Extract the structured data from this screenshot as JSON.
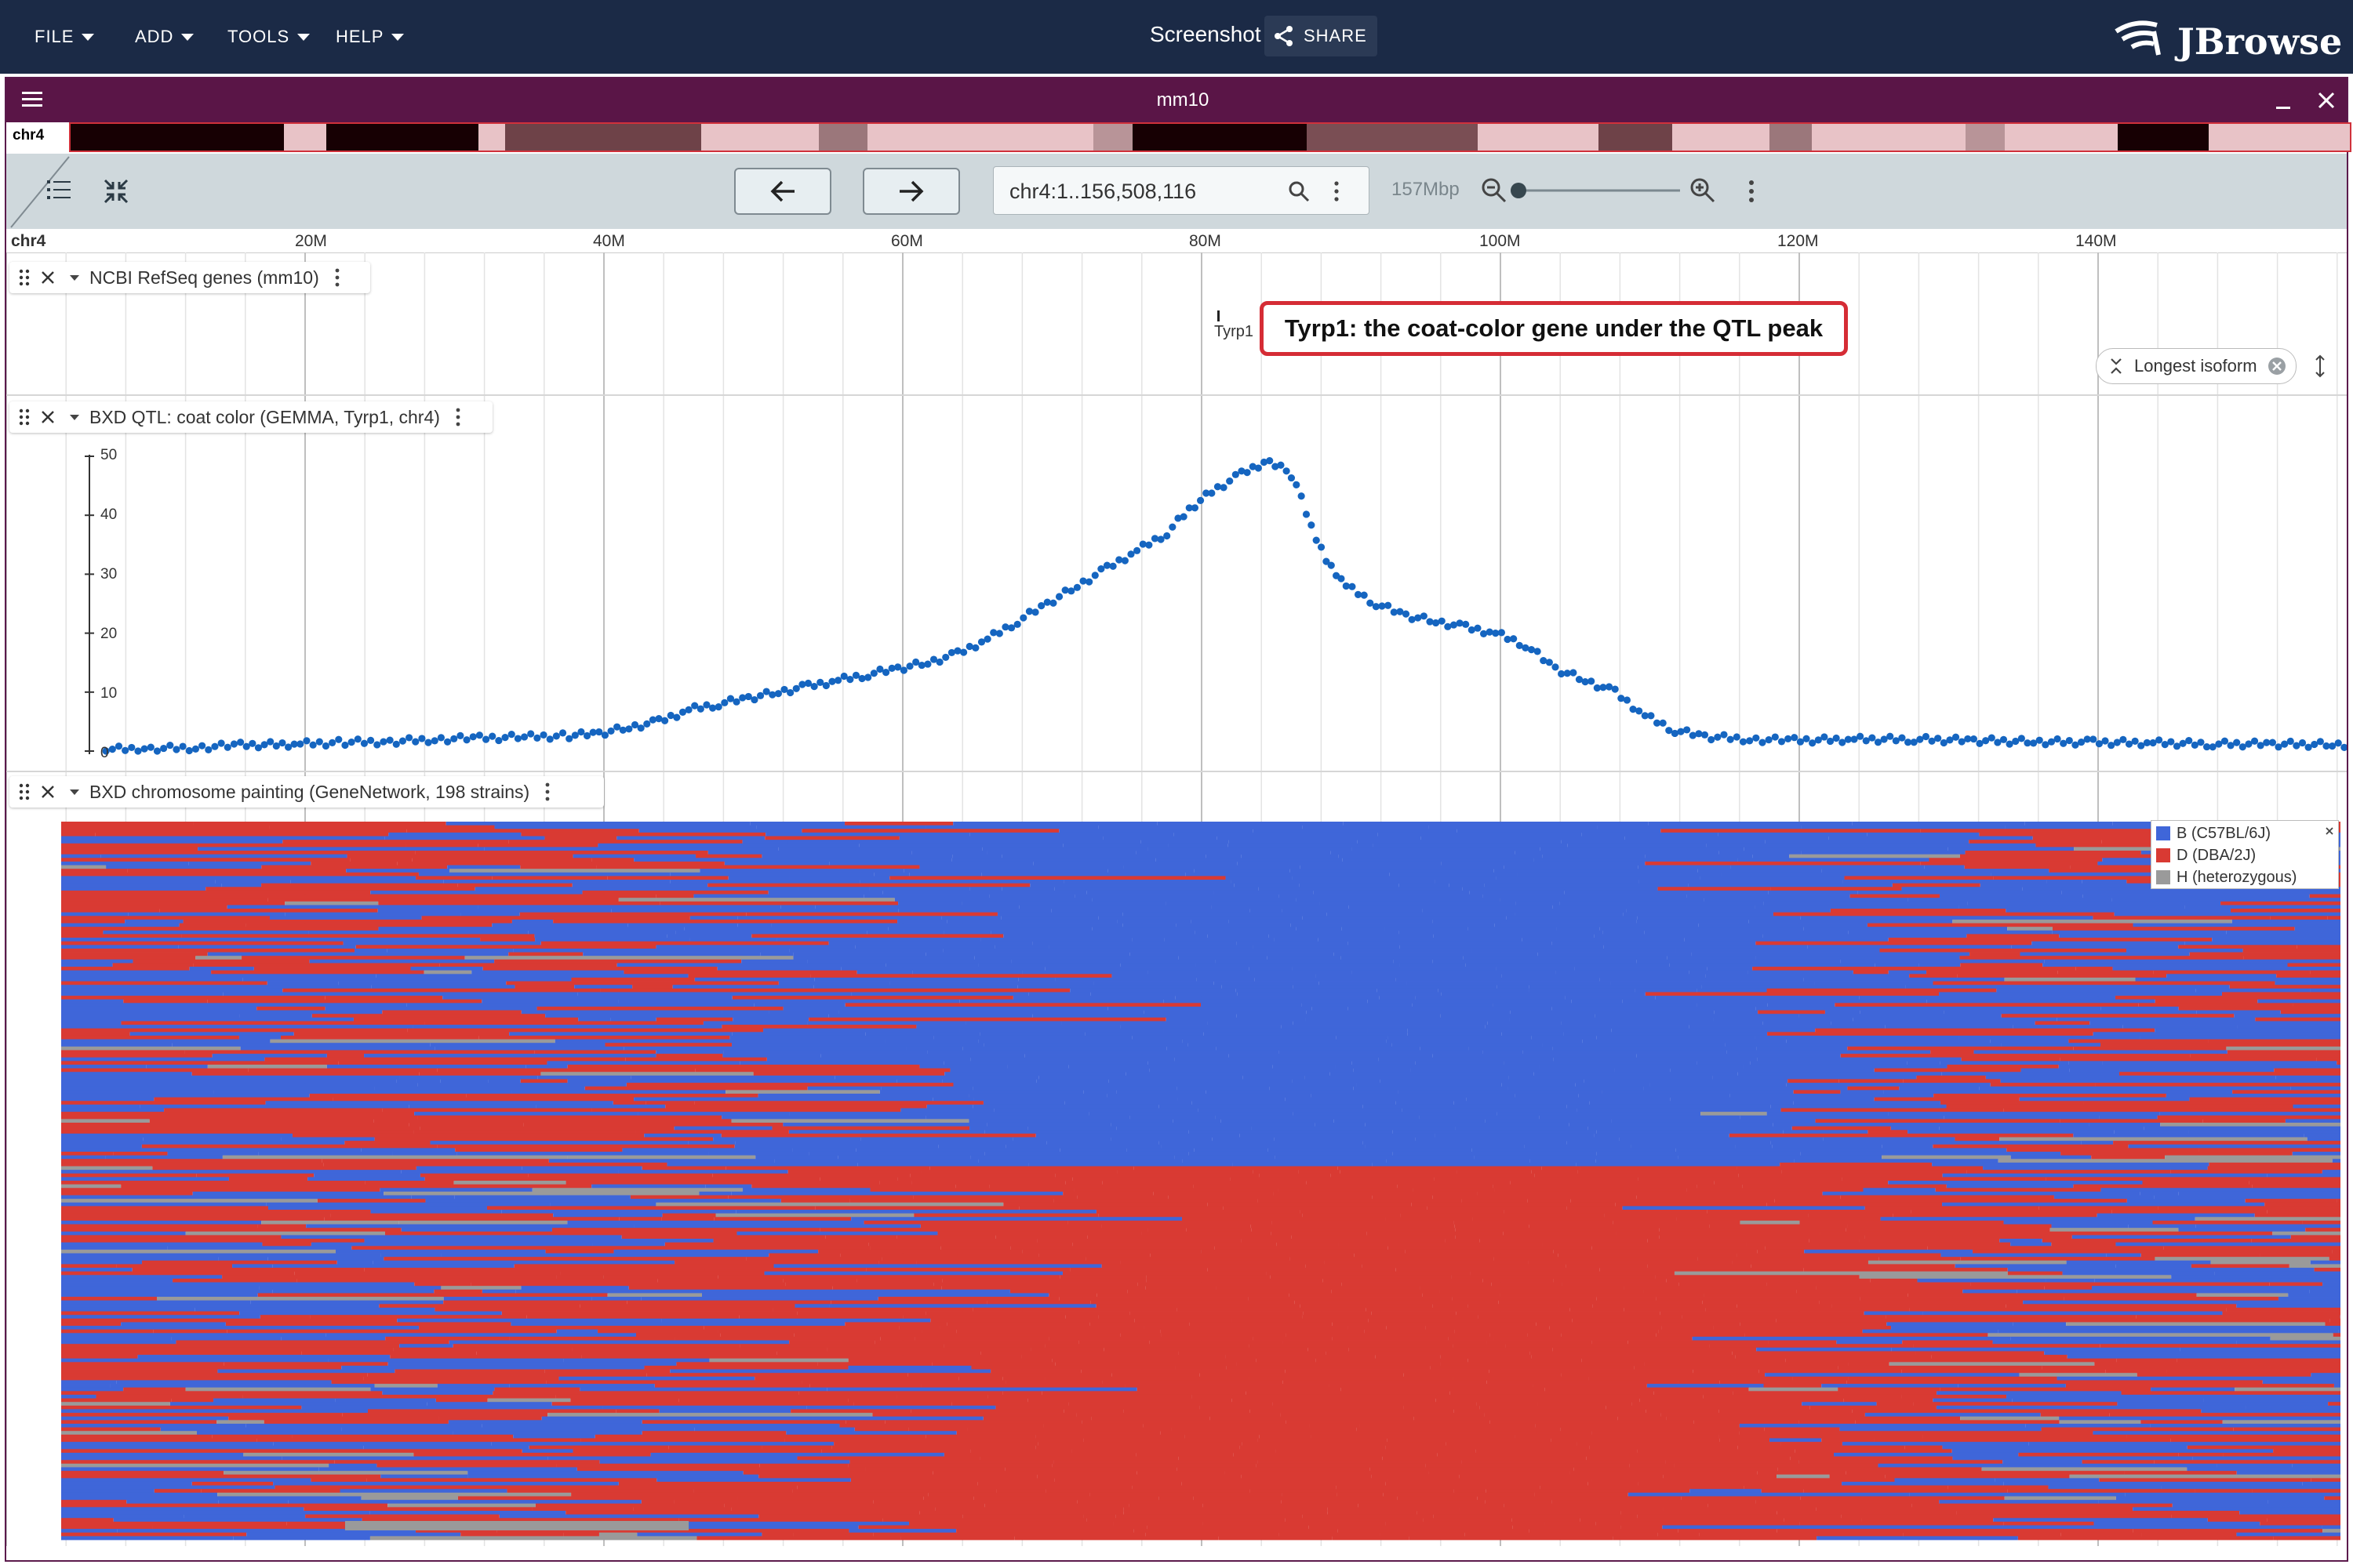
{
  "appbar": {
    "menus": [
      {
        "label": "FILE"
      },
      {
        "label": "ADD"
      },
      {
        "label": "TOOLS"
      },
      {
        "label": "HELP"
      }
    ],
    "screenshot_title": "Screenshot",
    "share_label": "SHARE",
    "logo_text": "JBrowse"
  },
  "view": {
    "title": "mm10",
    "overview_chr": "chr4",
    "location": "chr4:1..156,508,116",
    "zoom_label": "157Mbp",
    "ruler_chr": "chr4",
    "ruler_ticks": [
      "20M",
      "40M",
      "60M",
      "80M",
      "100M",
      "120M",
      "140M"
    ]
  },
  "tracks": {
    "genes": {
      "label": "NCBI RefSeq genes (mm10)",
      "gene_label": "Tyrp1",
      "isoform_label": "Longest isoform"
    },
    "qtl": {
      "label": "BXD QTL: coat color (GEMMA, Tyrp1, chr4)",
      "y_ticks": [
        "50",
        "40",
        "30",
        "20",
        "10",
        "0"
      ]
    },
    "painting": {
      "label": "BXD chromosome painting (GeneNetwork, 198 strains)",
      "legend": [
        {
          "label": "B (C57BL/6J)",
          "color": "#3f66d9"
        },
        {
          "label": "D (DBA/2J)",
          "color": "#d93a33"
        },
        {
          "label": "H (heterozygous)",
          "color": "#9a9a9a"
        }
      ]
    }
  },
  "annotation": {
    "callout_text": "Tyrp1: the coat-color gene under the QTL peak"
  },
  "colors": {
    "appbar": "#1b2a46",
    "view_header": "#5a1547",
    "toolbar": "#cfd8dc",
    "callout_border": "#d52c35",
    "qtl_points": "#1565c0",
    "genotype_B": "#3f66d9",
    "genotype_D": "#d93a33",
    "genotype_H": "#9a9a9a"
  },
  "chart_data": {
    "type": "scatter",
    "title": "",
    "xlabel": "",
    "ylabel": "",
    "xlim": [
      1,
      156.5
    ],
    "ylim": [
      0,
      50
    ],
    "x_unit": "Mbp (chr4)",
    "series": [
      {
        "name": "",
        "points": [
          [
            3,
            0.3
          ],
          [
            6,
            0.4
          ],
          [
            9,
            0.6
          ],
          [
            12,
            1
          ],
          [
            16,
            1.2
          ],
          [
            19,
            1.5
          ],
          [
            22,
            1.6
          ],
          [
            25,
            2
          ],
          [
            28,
            2.2
          ],
          [
            31,
            2.4
          ],
          [
            34,
            2.6
          ],
          [
            36,
            3
          ],
          [
            38,
            4
          ],
          [
            40,
            5
          ],
          [
            42,
            7
          ],
          [
            44,
            8
          ],
          [
            46,
            9
          ],
          [
            48,
            10
          ],
          [
            50,
            11
          ],
          [
            52,
            12
          ],
          [
            54,
            13
          ],
          [
            56,
            14
          ],
          [
            58,
            15
          ],
          [
            60,
            16.5
          ],
          [
            62,
            19
          ],
          [
            64,
            22
          ],
          [
            66,
            25
          ],
          [
            68,
            28
          ],
          [
            70,
            31
          ],
          [
            72,
            34
          ],
          [
            74,
            37
          ],
          [
            75.5,
            41
          ],
          [
            77,
            44
          ],
          [
            79,
            47
          ],
          [
            80.5,
            49
          ],
          [
            82,
            48
          ],
          [
            83,
            43
          ],
          [
            84,
            36
          ],
          [
            85,
            31
          ],
          [
            86,
            28
          ],
          [
            88,
            25
          ],
          [
            90,
            23
          ],
          [
            92,
            22
          ],
          [
            94,
            21
          ],
          [
            96,
            20
          ],
          [
            98,
            18
          ],
          [
            100,
            14
          ],
          [
            102,
            12
          ],
          [
            104,
            10
          ],
          [
            106,
            6
          ],
          [
            108,
            3.5
          ],
          [
            110,
            2.5
          ],
          [
            113,
            2
          ],
          [
            116,
            1.8
          ],
          [
            120,
            2
          ],
          [
            124,
            2
          ],
          [
            128,
            1.8
          ],
          [
            132,
            1.6
          ],
          [
            136,
            1.5
          ],
          [
            140,
            1.4
          ],
          [
            144,
            1.2
          ],
          [
            148,
            1.2
          ],
          [
            152,
            1.1
          ],
          [
            156,
            1.2
          ]
        ]
      }
    ]
  }
}
